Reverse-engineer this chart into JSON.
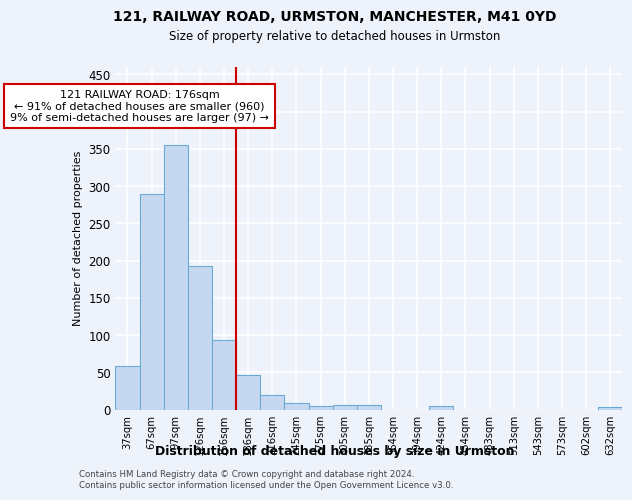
{
  "title1": "121, RAILWAY ROAD, URMSTON, MANCHESTER, M41 0YD",
  "title2": "Size of property relative to detached houses in Urmston",
  "xlabel": "Distribution of detached houses by size in Urmston",
  "ylabel": "Number of detached properties",
  "bin_labels": [
    "37sqm",
    "67sqm",
    "97sqm",
    "126sqm",
    "156sqm",
    "186sqm",
    "216sqm",
    "245sqm",
    "275sqm",
    "305sqm",
    "335sqm",
    "364sqm",
    "394sqm",
    "424sqm",
    "454sqm",
    "483sqm",
    "513sqm",
    "543sqm",
    "573sqm",
    "602sqm",
    "632sqm"
  ],
  "bar_values": [
    58,
    290,
    355,
    193,
    93,
    46,
    20,
    9,
    5,
    6,
    6,
    0,
    0,
    5,
    0,
    0,
    0,
    0,
    0,
    0,
    4
  ],
  "bar_color": "#c5d8f0",
  "bar_edge_color": "#6aaad4",
  "vline_at_bar_index": 5,
  "vline_color": "#cc0000",
  "annotation_line0": "121 RAILWAY ROAD: 176sqm",
  "annotation_line1": "← 91% of detached houses are smaller (960)",
  "annotation_line2": "9% of semi-detached houses are larger (97) →",
  "annotation_box_color": "#ffffff",
  "annotation_box_edge": "#cc0000",
  "ylim": [
    0,
    460
  ],
  "yticks": [
    0,
    50,
    100,
    150,
    200,
    250,
    300,
    350,
    400,
    450
  ],
  "footer1": "Contains HM Land Registry data © Crown copyright and database right 2024.",
  "footer2": "Contains public sector information licensed under the Open Government Licence v3.0.",
  "bg_color": "#eef2fa",
  "grid_color": "#ffffff"
}
